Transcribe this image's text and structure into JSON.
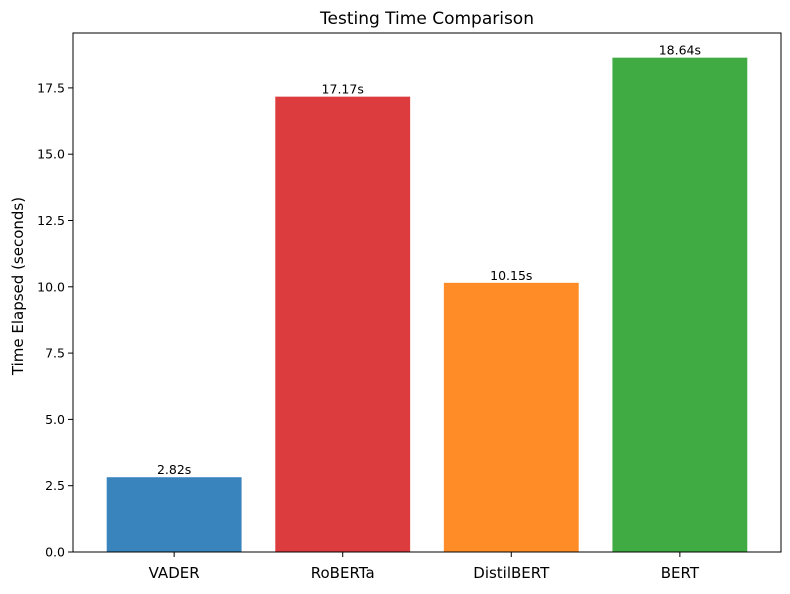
{
  "chart_data": {
    "type": "bar",
    "title": "Testing Time Comparison",
    "xlabel": "",
    "ylabel": "Time Elapsed (seconds)",
    "categories": [
      "VADER",
      "RoBERTa",
      "DistilBERT",
      "BERT"
    ],
    "values": [
      2.82,
      17.17,
      10.15,
      18.64
    ],
    "value_labels": [
      "2.82s",
      "17.17s",
      "10.15s",
      "18.64s"
    ],
    "colors": [
      "#3a84bd",
      "#dc3c3e",
      "#ff8c26",
      "#41ab43"
    ],
    "ylim": [
      0,
      19.57
    ],
    "yticks": [
      0.0,
      2.5,
      5.0,
      7.5,
      10.0,
      12.5,
      15.0,
      17.5
    ],
    "ytick_labels": [
      "0.0",
      "2.5",
      "5.0",
      "7.5",
      "10.0",
      "12.5",
      "15.0",
      "17.5"
    ],
    "grid": false,
    "legend": "none"
  }
}
